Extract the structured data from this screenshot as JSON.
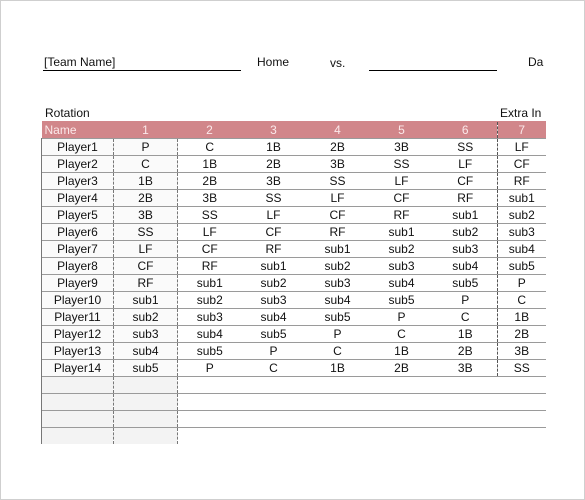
{
  "header": {
    "team_name": "[Team Name]",
    "home": "Home",
    "vs": "vs.",
    "date": "Da"
  },
  "labels": {
    "rotation": "Rotation",
    "extra_innings": "Extra In"
  },
  "table": {
    "name_header": "Name",
    "innings": [
      "1",
      "2",
      "3",
      "4",
      "5",
      "6",
      "7"
    ],
    "rows": [
      {
        "name": "Player1",
        "pos": [
          "P",
          "C",
          "1B",
          "2B",
          "3B",
          "SS",
          "LF"
        ]
      },
      {
        "name": "Player2",
        "pos": [
          "C",
          "1B",
          "2B",
          "3B",
          "SS",
          "LF",
          "CF"
        ]
      },
      {
        "name": "Player3",
        "pos": [
          "1B",
          "2B",
          "3B",
          "SS",
          "LF",
          "CF",
          "RF"
        ]
      },
      {
        "name": "Player4",
        "pos": [
          "2B",
          "3B",
          "SS",
          "LF",
          "CF",
          "RF",
          "sub1"
        ]
      },
      {
        "name": "Player5",
        "pos": [
          "3B",
          "SS",
          "LF",
          "CF",
          "RF",
          "sub1",
          "sub2"
        ]
      },
      {
        "name": "Player6",
        "pos": [
          "SS",
          "LF",
          "CF",
          "RF",
          "sub1",
          "sub2",
          "sub3"
        ]
      },
      {
        "name": "Player7",
        "pos": [
          "LF",
          "CF",
          "RF",
          "sub1",
          "sub2",
          "sub3",
          "sub4"
        ]
      },
      {
        "name": "Player8",
        "pos": [
          "CF",
          "RF",
          "sub1",
          "sub2",
          "sub3",
          "sub4",
          "sub5"
        ]
      },
      {
        "name": "Player9",
        "pos": [
          "RF",
          "sub1",
          "sub2",
          "sub3",
          "sub4",
          "sub5",
          "P"
        ]
      },
      {
        "name": "Player10",
        "pos": [
          "sub1",
          "sub2",
          "sub3",
          "sub4",
          "sub5",
          "P",
          "C"
        ]
      },
      {
        "name": "Player11",
        "pos": [
          "sub2",
          "sub3",
          "sub4",
          "sub5",
          "P",
          "C",
          "1B"
        ]
      },
      {
        "name": "Player12",
        "pos": [
          "sub3",
          "sub4",
          "sub5",
          "P",
          "C",
          "1B",
          "2B"
        ]
      },
      {
        "name": "Player13",
        "pos": [
          "sub4",
          "sub5",
          "P",
          "C",
          "1B",
          "2B",
          "3B"
        ]
      },
      {
        "name": "Player14",
        "pos": [
          "sub5",
          "P",
          "C",
          "1B",
          "2B",
          "3B",
          "SS"
        ]
      }
    ],
    "empty_rows": 4
  }
}
